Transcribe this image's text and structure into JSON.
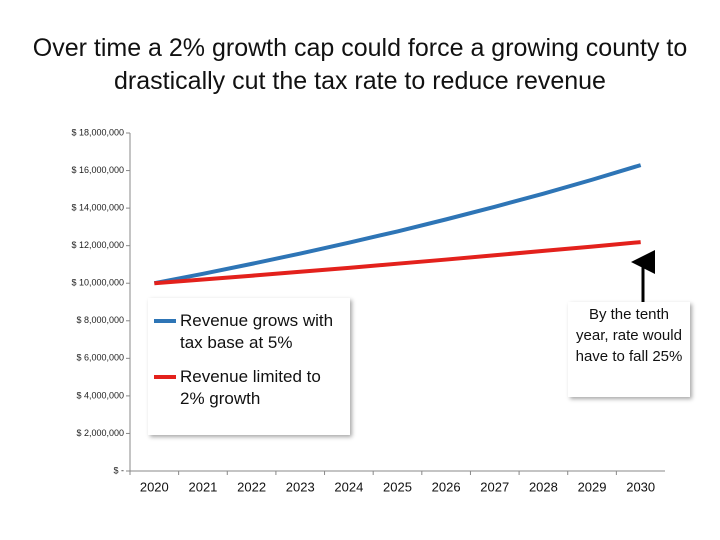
{
  "chart_data": {
    "type": "line",
    "title": "Over time a 2% growth cap could force a growing county to drastically cut the tax rate to reduce revenue",
    "categories": [
      "2020",
      "2021",
      "2022",
      "2023",
      "2024",
      "2025",
      "2026",
      "2027",
      "2028",
      "2029",
      "2030"
    ],
    "series": [
      {
        "name": "Revenue grows with tax base at 5%",
        "color": "#2e75b6",
        "values": [
          10000000,
          10500000,
          11030000,
          11580000,
          12160000,
          12760000,
          13400000,
          14070000,
          14770000,
          15510000,
          16290000
        ]
      },
      {
        "name": "Revenue limited to 2% growth",
        "color": "#e3211c",
        "values": [
          10000000,
          10200000,
          10400000,
          10610000,
          10820000,
          11040000,
          11260000,
          11490000,
          11720000,
          11950000,
          12190000
        ]
      }
    ],
    "ylim": [
      0,
      18000000
    ],
    "yticks": [
      {
        "value": 0,
        "label": "$ -"
      },
      {
        "value": 2000000,
        "label": "$ 2,000,000"
      },
      {
        "value": 4000000,
        "label": "$ 4,000,000"
      },
      {
        "value": 6000000,
        "label": "$ 6,000,000"
      },
      {
        "value": 8000000,
        "label": "$ 8,000,000"
      },
      {
        "value": 10000000,
        "label": "$ 10,000,000"
      },
      {
        "value": 12000000,
        "label": "$ 12,000,000"
      },
      {
        "value": 14000000,
        "label": "$ 14,000,000"
      },
      {
        "value": 16000000,
        "label": "$ 16,000,000"
      },
      {
        "value": 18000000,
        "label": "$ 18,000,000"
      }
    ],
    "grid": false,
    "annotation": "By the tenth year, rate would have to fall 25%"
  }
}
